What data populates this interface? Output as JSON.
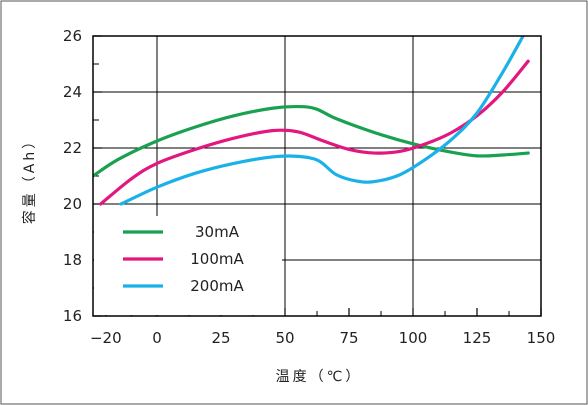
{
  "chart_data": {
    "type": "line",
    "xlabel": "温度（℃）",
    "ylabel": "容量（Ah）",
    "xlim": [
      -25,
      150
    ],
    "ylim": [
      16,
      26
    ],
    "xticks": [
      -20,
      0,
      25,
      50,
      75,
      100,
      125,
      150
    ],
    "xtick_labels": [
      "−20",
      "0",
      "25",
      "50",
      "75",
      "100",
      "125",
      "150"
    ],
    "yticks": [
      16,
      18,
      20,
      22,
      24,
      26
    ],
    "ytick_labels": [
      "16",
      "18",
      "20",
      "22",
      "24",
      "26"
    ],
    "grid": true,
    "legend_position": "bottom-left",
    "series": [
      {
        "name": "30mA",
        "color": "#1aa150",
        "x": [
          -25,
          -15,
          0,
          15,
          30,
          45,
          55,
          62,
          70,
          85,
          100,
          115,
          125,
          135,
          145
        ],
        "y": [
          21.0,
          21.6,
          22.25,
          22.75,
          23.15,
          23.42,
          23.48,
          23.4,
          23.05,
          22.55,
          22.15,
          21.85,
          21.72,
          21.75,
          21.82
        ]
      },
      {
        "name": "100mA",
        "color": "#e2177f",
        "x": [
          -22,
          -10,
          0,
          15,
          30,
          45,
          55,
          65,
          75,
          85,
          95,
          105,
          115,
          125,
          135,
          145
        ],
        "y": [
          20.0,
          20.9,
          21.45,
          21.95,
          22.35,
          22.62,
          22.58,
          22.25,
          21.95,
          21.82,
          21.88,
          22.15,
          22.55,
          23.15,
          24.0,
          25.1
        ]
      },
      {
        "name": "200mA",
        "color": "#1ab1e8",
        "x": [
          -14,
          0,
          15,
          30,
          45,
          55,
          63,
          70,
          78,
          85,
          95,
          105,
          115,
          125,
          135,
          143
        ],
        "y": [
          20.0,
          20.6,
          21.1,
          21.45,
          21.68,
          21.7,
          21.55,
          21.05,
          20.82,
          20.8,
          21.05,
          21.6,
          22.3,
          23.25,
          24.7,
          26.0
        ]
      }
    ]
  }
}
